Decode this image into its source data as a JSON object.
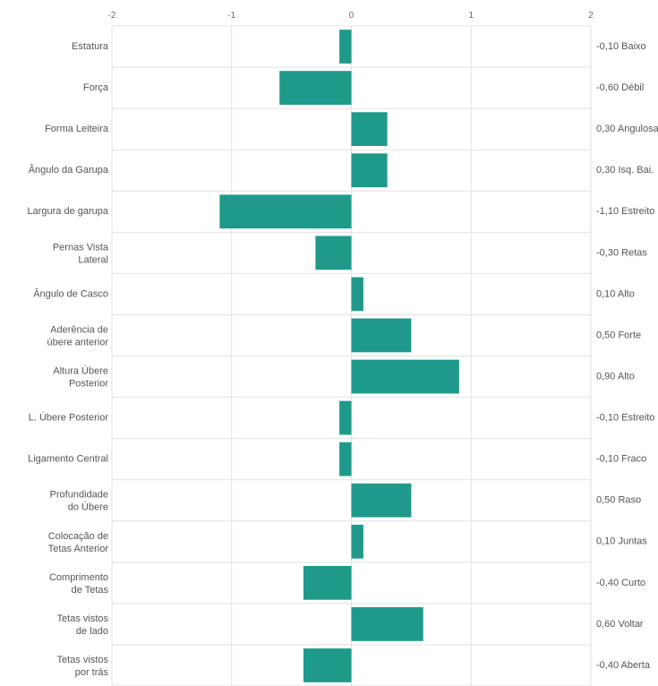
{
  "chart_data": {
    "type": "bar",
    "orientation": "horizontal",
    "xlim": [
      -2,
      2
    ],
    "x_ticks": [
      "-2",
      "-1",
      "0",
      "1",
      "2"
    ],
    "grid": true,
    "bar_color": "#1f9a8a",
    "categories": [
      "Estatura",
      "Força",
      "Forma Leiteira",
      "Ângulo da Garupa",
      "Largura de garupa",
      "Pernas Vista Lateral",
      "Ângulo de Casco",
      "Aderência de úbere anterior",
      "Altura Úbere Posterior",
      "L. Úbere Posterior",
      "Ligamento Central",
      "Profundidade do Úbere",
      "Colocação de Tetas Anterior",
      "Comprimento de Tetas",
      "Tetas vistos de lado",
      "Tetas vistos por trás"
    ],
    "values": [
      -0.1,
      -0.6,
      0.3,
      0.3,
      -1.1,
      -0.3,
      0.1,
      0.5,
      0.9,
      -0.1,
      -0.1,
      0.5,
      0.1,
      -0.4,
      0.6,
      -0.4
    ],
    "value_labels": [
      "-0,10 Baixo",
      "-0,60 Débil",
      "0,30 Angulosa",
      "0,30 Isq. Bai.",
      "-1,10 Estreito",
      "-0,30 Retas",
      "0,10 Alto",
      "0,50 Forte",
      "0,90 Alto",
      "-0,10 Estreito",
      "-0,10 Fraco",
      "0,50 Raso",
      "0,10 Juntas",
      "-0,40 Curto",
      "0,60 Voltar",
      "-0,40 Aberta"
    ]
  }
}
